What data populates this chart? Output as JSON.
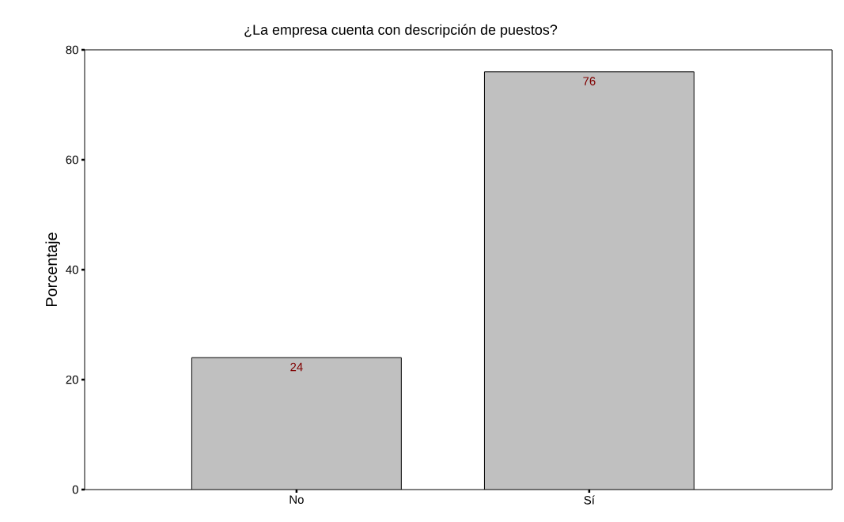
{
  "chart_data": {
    "type": "bar",
    "title": "¿La empresa cuenta con descripción de puestos?",
    "ylabel": "Porcentaje",
    "categories": [
      "No",
      "Sí"
    ],
    "values": [
      24,
      76
    ],
    "color": "#c0c0c0",
    "data_labels": true,
    "ylim": [
      0,
      80
    ],
    "yticks": [
      0,
      20,
      40,
      60,
      80
    ]
  }
}
